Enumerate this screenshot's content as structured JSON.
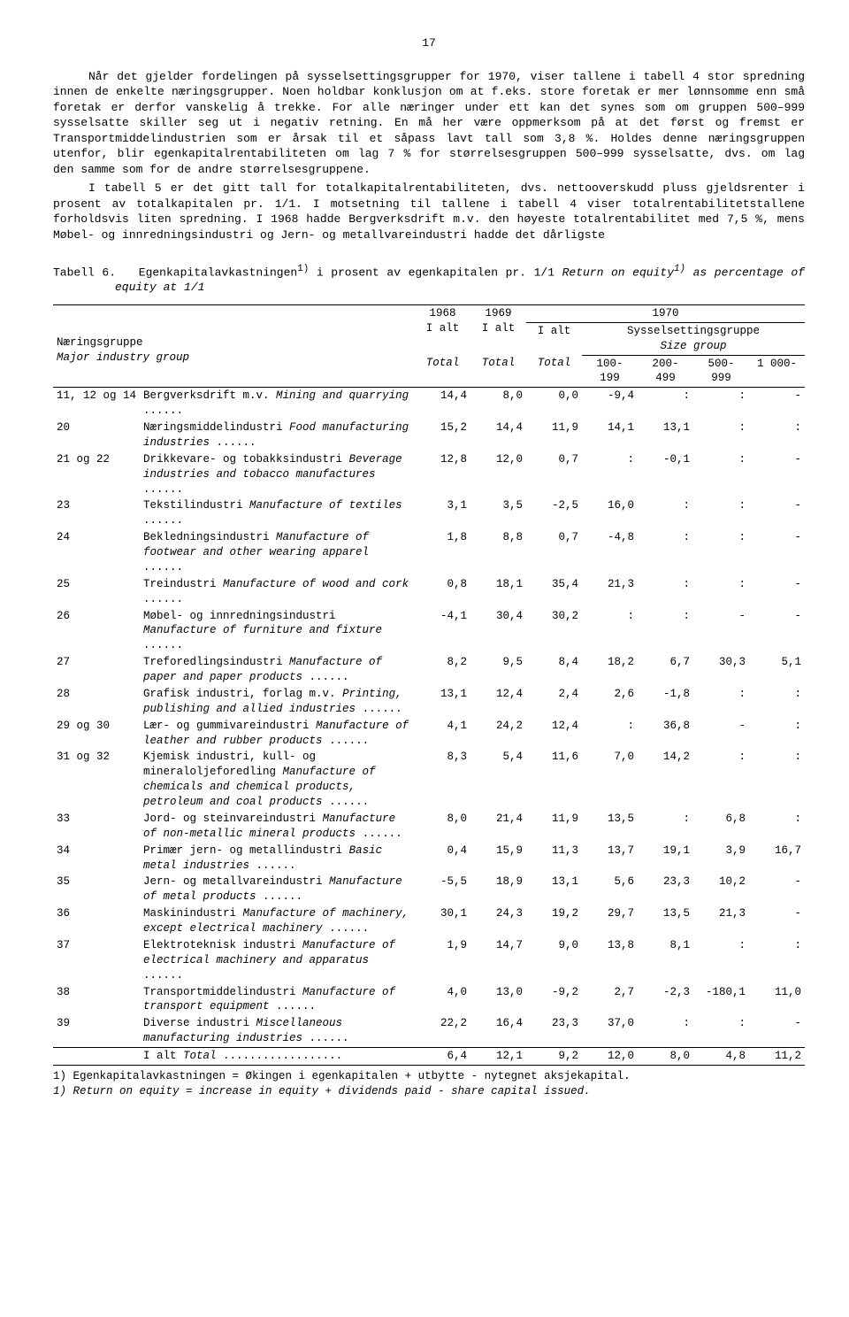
{
  "pageNumber": "17",
  "paragraphs": [
    "Når det gjelder fordelingen på sysselsettingsgrupper for 1970, viser tallene i tabell 4 stor spredning innen de enkelte næringsgrupper. Noen holdbar konklusjon om at f.eks. store foretak er mer lønnsomme enn små foretak er derfor vanskelig å trekke. For alle næringer under ett kan det synes som om gruppen 500–999 sysselsatte skiller seg ut i negativ retning. En må her være oppmerksom på at det først og fremst er Transportmiddelindustrien som er årsak til et såpass lavt tall som 3,8 %. Holdes denne næringsgruppen utenfor, blir egenkapitalrentabiliteten om lag 7 % for størrelsesgruppen 500–999 sysselsatte, dvs. om lag den samme som for de andre størrelsesgruppene.",
    "I tabell 5 er det gitt tall for totalkapitalrentabiliteten, dvs. nettooverskudd pluss gjeldsrenter i prosent av totalkapitalen pr. 1/1. I motsetning til tallene i tabell 4 viser totalrentabilitetstallene forholdsvis liten spredning. I 1968 hadde Bergverksdrift m.v. den høyeste totalrentabilitet med 7,5 %, mens Møbel- og innredningsindustri og Jern- og metallvareindustri hadde det dårligste"
  ],
  "tableTitle": {
    "prefix": "Tabell 6.",
    "no_a": "Egenkapitalavkastningen",
    "sup1": "1)",
    "no_b": " i prosent av egenkapitalen pr. 1/1  ",
    "it_a": "Return on equity",
    "it_b": " as percentage of equity at 1/1"
  },
  "headers": {
    "groupNo": "Næringsgruppe",
    "groupIt": "Major industry group",
    "y1968": "1968",
    "y1969": "1969",
    "y1970": "1970",
    "ialt": "I alt",
    "total": "Total",
    "sizeNo": "Sysselsettingsgruppe",
    "sizeIt": "Size group",
    "c1": "100-\n199",
    "c2": "200-\n499",
    "c3": "500-\n999",
    "c4": "1 000-"
  },
  "rows": [
    {
      "code": "11, 12 og 14",
      "no": "Bergverksdrift m.v.",
      "it": "Mining and quarrying",
      "v": [
        "14,4",
        "8,0",
        "0,0",
        "-9,4",
        ":",
        ":",
        "-"
      ]
    },
    {
      "code": "20",
      "no": "Næringsmiddelindustri",
      "it": "Food manufacturing industries",
      "v": [
        "15,2",
        "14,4",
        "11,9",
        "14,1",
        "13,1",
        ":",
        ":"
      ]
    },
    {
      "code": "21 og 22",
      "no": "Drikkevare- og tobakksindustri",
      "it": "Beverage industries and tobacco manufactures",
      "v": [
        "12,8",
        "12,0",
        "0,7",
        ":",
        "-0,1",
        ":",
        "-"
      ]
    },
    {
      "code": "23",
      "no": "Tekstilindustri",
      "it": "Manufacture of textiles",
      "v": [
        "3,1",
        "3,5",
        "-2,5",
        "16,0",
        ":",
        ":",
        "-"
      ]
    },
    {
      "code": "24",
      "no": "Bekledningsindustri",
      "it": "Manufacture of footwear and other wearing apparel",
      "v": [
        "1,8",
        "8,8",
        "0,7",
        "-4,8",
        ":",
        ":",
        "-"
      ]
    },
    {
      "code": "25",
      "no": "Treindustri",
      "it": "Manufacture of wood and cork",
      "v": [
        "0,8",
        "18,1",
        "35,4",
        "21,3",
        ":",
        ":",
        "-"
      ]
    },
    {
      "code": "26",
      "no": "Møbel- og innredningsindustri",
      "it": "Manufacture of furniture and fixture",
      "v": [
        "-4,1",
        "30,4",
        "30,2",
        ":",
        ":",
        "-",
        "-"
      ]
    },
    {
      "code": "27",
      "no": "Treforedlingsindustri",
      "it": "Manufacture of paper and paper products",
      "v": [
        "8,2",
        "9,5",
        "8,4",
        "18,2",
        "6,7",
        "30,3",
        "5,1"
      ]
    },
    {
      "code": "28",
      "no": "Grafisk industri, forlag m.v.",
      "it": "Printing, publishing and allied industries",
      "v": [
        "13,1",
        "12,4",
        "2,4",
        "2,6",
        "-1,8",
        ":",
        ":"
      ]
    },
    {
      "code": "29 og 30",
      "no": "Lær- og gummivareindustri",
      "it": "Manufacture of leather and rubber products",
      "v": [
        "4,1",
        "24,2",
        "12,4",
        ":",
        "36,8",
        "-",
        ":"
      ]
    },
    {
      "code": "31 og 32",
      "no": "Kjemisk industri, kull- og mineraloljeforedling",
      "it": "Manufacture of chemicals and chemical products, petroleum and coal products",
      "v": [
        "8,3",
        "5,4",
        "11,6",
        "7,0",
        "14,2",
        ":",
        ":"
      ]
    },
    {
      "code": "33",
      "no": "Jord- og steinvareindustri",
      "it": "Manufacture of non-metallic mineral products",
      "v": [
        "8,0",
        "21,4",
        "11,9",
        "13,5",
        ":",
        "6,8",
        ":"
      ]
    },
    {
      "code": "34",
      "no": "Primær jern- og metallindustri",
      "it": "Basic metal industries",
      "v": [
        "0,4",
        "15,9",
        "11,3",
        "13,7",
        "19,1",
        "3,9",
        "16,7"
      ]
    },
    {
      "code": "35",
      "no": "Jern- og metallvareindustri",
      "it": "Manufacture of metal products",
      "v": [
        "-5,5",
        "18,9",
        "13,1",
        "5,6",
        "23,3",
        "10,2",
        "-"
      ]
    },
    {
      "code": "36",
      "no": "Maskinindustri",
      "it": "Manufacture of machinery, except electrical machinery",
      "v": [
        "30,1",
        "24,3",
        "19,2",
        "29,7",
        "13,5",
        "21,3",
        "-"
      ]
    },
    {
      "code": "37",
      "no": "Elektroteknisk industri",
      "it": "Manufacture of electrical machinery and apparatus",
      "v": [
        "1,9",
        "14,7",
        "9,0",
        "13,8",
        "8,1",
        ":",
        ":"
      ]
    },
    {
      "code": "38",
      "no": "Transportmiddelindustri",
      "it": "Manufacture of transport equipment",
      "v": [
        "4,0",
        "13,0",
        "-9,2",
        "2,7",
        "-2,3",
        "-180,1",
        "11,0"
      ]
    },
    {
      "code": "39",
      "no": "Diverse industri",
      "it": "Miscellaneous manufacturing industries",
      "v": [
        "22,2",
        "16,4",
        "23,3",
        "37,0",
        ":",
        ":",
        "-"
      ]
    }
  ],
  "totalRow": {
    "code": "",
    "no": "I alt",
    "it": "Total",
    "v": [
      "6,4",
      "12,1",
      "9,2",
      "12,0",
      "8,0",
      "4,8",
      "11,2"
    ]
  },
  "footnotes": {
    "f1": "1) Egenkapitalavkastningen = Økingen i egenkapitalen + utbytte - nytegnet aksjekapital.",
    "f2": "1) Return on equity = increase in equity + dividends paid - share capital issued."
  }
}
